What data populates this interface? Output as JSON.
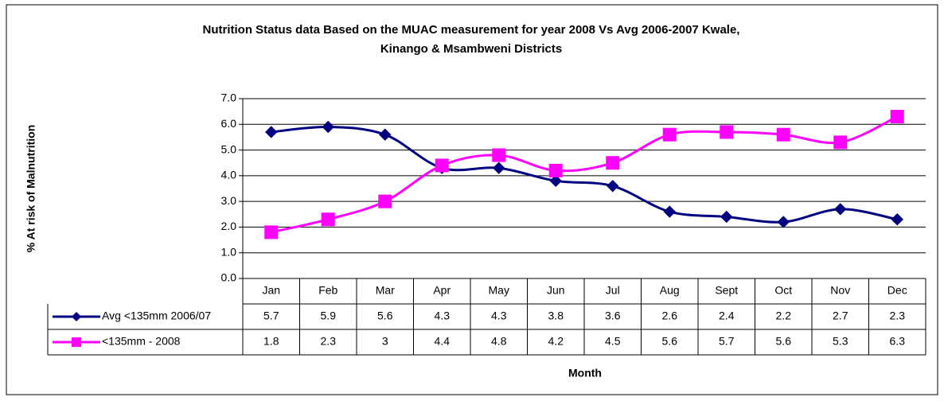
{
  "chart_data": {
    "type": "line",
    "title": [
      "Nutrition Status data Based on the MUAC measurement for year 2008 Vs Avg 2006-2007  Kwale,",
      "Kinango & Msambweni Districts"
    ],
    "y_label": "% At risk of Malnutrition",
    "x_label": "Month",
    "categories": [
      "Jan",
      "Feb",
      "Mar",
      "Apr",
      "May",
      "Jun",
      "Jul",
      "Aug",
      "Sept",
      "Oct",
      "Nov",
      "Dec"
    ],
    "series": [
      {
        "name": "Avg <135mm 2006/07",
        "color": "#000080",
        "marker": "diamond",
        "values": [
          5.7,
          5.9,
          5.6,
          4.3,
          4.3,
          3.8,
          3.6,
          2.6,
          2.4,
          2.2,
          2.7,
          2.3
        ]
      },
      {
        "name": "<135mm - 2008",
        "color": "#ff00ff",
        "marker": "square",
        "values": [
          1.8,
          2.3,
          3,
          4.4,
          4.8,
          4.2,
          4.5,
          5.6,
          5.7,
          5.6,
          5.3,
          6.3
        ]
      }
    ],
    "ylim": [
      0,
      7
    ],
    "yticks": [
      {
        "value": 0,
        "label": "0.0"
      },
      {
        "value": 1,
        "label": "1.0"
      },
      {
        "value": 2,
        "label": "2.0"
      },
      {
        "value": 3,
        "label": "3.0"
      },
      {
        "value": 4,
        "label": "4.0"
      },
      {
        "value": 5,
        "label": "5.0"
      },
      {
        "value": 6,
        "label": "6.0"
      },
      {
        "value": 7,
        "label": "7.0"
      }
    ],
    "grid": true,
    "data_table": true
  }
}
